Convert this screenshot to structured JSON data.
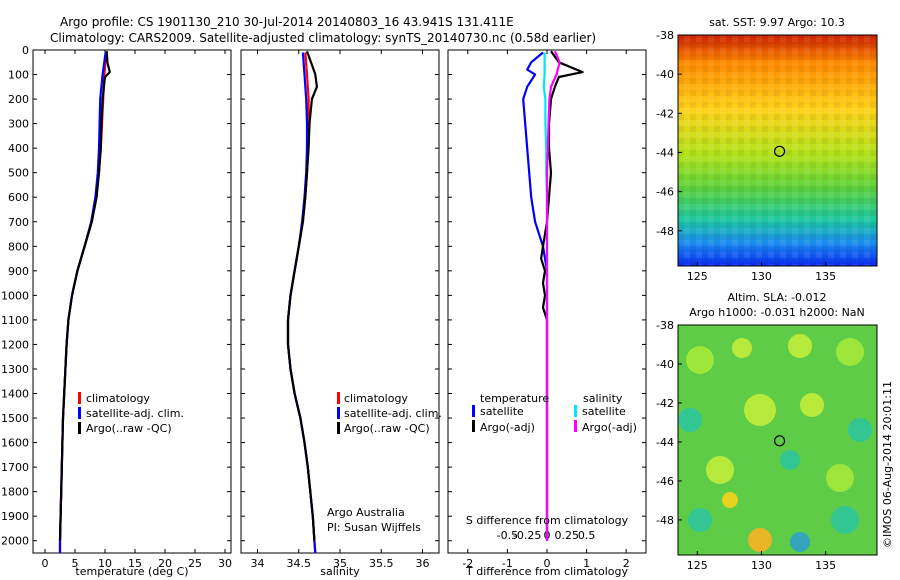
{
  "title_line1": "Argo profile: CS 1901130_210 30-Jul-2014 20140803_16 43.941S 131.411E",
  "title_line2": "Climatology: CARS2009. Satellite-adjusted climatology: synTS_20140730.nc (0.58d earlier)",
  "side_stamp": "©IMOS 06-Aug-2014 20:01:11",
  "colors": {
    "climatology": "#ff0000",
    "satellite": "#0000ff",
    "argo": "#000000",
    "sal_satellite": "#00e5ff",
    "sal_argo": "#ff00ff"
  },
  "depth_ticks": [
    "0",
    "100",
    "200",
    "300",
    "400",
    "500",
    "600",
    "700",
    "800",
    "900",
    "1000",
    "1100",
    "1200",
    "1300",
    "1400",
    "1500",
    "1600",
    "1700",
    "1800",
    "1900",
    "2000"
  ],
  "chart_data": [
    {
      "type": "line",
      "xlabel": "temperature (deg C)",
      "xlim": [
        -2,
        31
      ],
      "ylim": [
        2050,
        0
      ],
      "xticks": [
        "0",
        "5",
        "10",
        "15",
        "20",
        "25",
        "30"
      ],
      "legend": [
        "climatology",
        "satellite-adj. clim.",
        "Argo(..raw -QC)"
      ],
      "series": [
        {
          "name": "climatology",
          "depth": [
            10,
            100,
            200,
            300,
            400,
            500,
            600,
            700,
            800,
            900,
            1000,
            1100,
            1200,
            1300,
            1400,
            1500,
            1600,
            1700,
            1800,
            1900,
            2000,
            2050
          ],
          "values": [
            10.2,
            9.9,
            9.7,
            9.5,
            9.3,
            9.0,
            8.5,
            7.8,
            6.6,
            5.4,
            4.5,
            3.9,
            3.6,
            3.4,
            3.2,
            3.0,
            2.9,
            2.8,
            2.7,
            2.6,
            2.5,
            2.5
          ]
        },
        {
          "name": "satellite-adj. clim.",
          "depth": [
            10,
            100,
            200,
            300,
            400,
            500,
            600,
            700,
            800,
            900,
            1000,
            1100,
            1200,
            1300,
            1400,
            1500,
            1600,
            1700,
            1800,
            1900,
            2000,
            2050
          ],
          "values": [
            10.1,
            9.6,
            9.2,
            9.1,
            9.0,
            8.8,
            8.4,
            7.7,
            6.6,
            5.4,
            4.5,
            3.9,
            3.6,
            3.4,
            3.2,
            3.0,
            2.9,
            2.8,
            2.7,
            2.6,
            2.5,
            2.5
          ]
        },
        {
          "name": "Argo(..raw -QC)",
          "depth": [
            5,
            50,
            90,
            110,
            130,
            200,
            300,
            400,
            500,
            600,
            700,
            800,
            900,
            1000,
            1100,
            1200,
            1300,
            1400,
            1500,
            1600,
            1700,
            1800,
            1900,
            2000
          ],
          "values": [
            10.3,
            10.4,
            10.8,
            10.0,
            9.9,
            9.6,
            9.4,
            9.3,
            9.0,
            8.6,
            7.8,
            6.6,
            5.4,
            4.5,
            3.9,
            3.6,
            3.4,
            3.2,
            3.0,
            2.9,
            2.8,
            2.7,
            2.6,
            2.5
          ]
        }
      ]
    },
    {
      "type": "line",
      "xlabel": "salinity",
      "xlim": [
        33.8,
        36.2
      ],
      "ylim": [
        2050,
        0
      ],
      "xticks": [
        "34",
        "34.5",
        "35",
        "35.5",
        "36"
      ],
      "legend": [
        "climatology",
        "satellite-adj. clim.",
        "Argo(..raw -QC)"
      ],
      "annotations": [
        "Argo Australia",
        "PI: Susan Wijffels"
      ],
      "series": [
        {
          "name": "climatology",
          "depth": [
            10,
            100,
            200,
            300,
            400,
            500,
            600,
            700,
            800,
            900,
            1000,
            1100,
            1200,
            1300,
            1400,
            1500,
            1600,
            1700,
            1800,
            1900,
            2000,
            2050
          ],
          "values": [
            34.58,
            34.6,
            34.62,
            34.62,
            34.61,
            34.6,
            34.58,
            34.55,
            34.5,
            34.45,
            34.4,
            34.37,
            34.37,
            34.4,
            34.45,
            34.52,
            34.57,
            34.61,
            34.64,
            34.67,
            34.69,
            34.7
          ]
        },
        {
          "name": "satellite-adj. clim.",
          "depth": [
            10,
            100,
            200,
            300,
            400,
            500,
            600,
            700,
            800,
            900,
            1000,
            1100,
            1200,
            1300,
            1400,
            1500,
            1600,
            1700,
            1800,
            1900,
            2000,
            2050
          ],
          "values": [
            34.55,
            34.57,
            34.59,
            34.6,
            34.6,
            34.59,
            34.57,
            34.54,
            34.5,
            34.45,
            34.4,
            34.37,
            34.37,
            34.4,
            34.45,
            34.52,
            34.57,
            34.61,
            34.64,
            34.67,
            34.69,
            34.7
          ]
        },
        {
          "name": "Argo(..raw -QC)",
          "depth": [
            5,
            60,
            100,
            150,
            200,
            300,
            400,
            500,
            600,
            700,
            800,
            900,
            1000,
            1100,
            1200,
            1300,
            1400,
            1500,
            1600,
            1700,
            1800,
            1900,
            2000
          ],
          "values": [
            34.6,
            34.66,
            34.7,
            34.72,
            34.66,
            34.63,
            34.62,
            34.6,
            34.58,
            34.55,
            34.5,
            34.45,
            34.4,
            34.37,
            34.37,
            34.4,
            34.45,
            34.52,
            34.57,
            34.61,
            34.64,
            34.67,
            34.69
          ]
        }
      ]
    },
    {
      "type": "line",
      "xlabel": "T difference from climatology",
      "xlabel_top": "S difference from climatology",
      "xlim": [
        -2.5,
        2.5
      ],
      "ylim": [
        2050,
        0
      ],
      "xticks": [
        "-2",
        "-1",
        "0",
        "1",
        "2"
      ],
      "xticks_top": [
        "-0.5",
        "-0.25",
        "0",
        "0.25",
        "0.5"
      ],
      "legend_titles": [
        "temperature",
        "salinity"
      ],
      "legend": [
        "satellite",
        "Argo(-adj)",
        "satellite",
        "Argo(-adj)"
      ],
      "series": [
        {
          "name": "temperature satellite",
          "depth": [
            10,
            50,
            80,
            100,
            150,
            200,
            300,
            400,
            500,
            600,
            700,
            800,
            900,
            1000,
            1200,
            1500,
            2000
          ],
          "values": [
            -0.1,
            -0.4,
            -0.5,
            -0.3,
            -0.5,
            -0.6,
            -0.55,
            -0.5,
            -0.45,
            -0.4,
            -0.3,
            -0.1,
            0.0,
            0.0,
            0.0,
            0.0,
            0.0
          ]
        },
        {
          "name": "temperature Argo(-adj)",
          "depth": [
            5,
            50,
            90,
            110,
            150,
            200,
            300,
            400,
            500,
            600,
            700,
            800,
            850,
            900,
            950,
            1000,
            1050,
            1100,
            1200,
            1500,
            2000
          ],
          "values": [
            0.1,
            0.3,
            0.9,
            0.3,
            0.2,
            0.1,
            0.05,
            0.05,
            0.1,
            0.05,
            0.0,
            -0.1,
            -0.15,
            -0.05,
            -0.1,
            -0.05,
            -0.1,
            0.0,
            0.0,
            0.0,
            0.0
          ]
        },
        {
          "name": "salinity satellite",
          "depth": [
            10,
            50,
            100,
            150,
            200,
            300,
            400,
            500,
            600,
            800,
            1000,
            1500,
            2000
          ],
          "values": [
            -0.03,
            -0.03,
            -0.03,
            -0.04,
            -0.02,
            -0.02,
            -0.01,
            -0.01,
            0.0,
            0.0,
            0.0,
            0.0,
            0.0
          ]
        },
        {
          "name": "salinity Argo(-adj)",
          "depth": [
            5,
            50,
            100,
            150,
            200,
            300,
            400,
            500,
            600,
            800,
            1000,
            1500,
            2000
          ],
          "values": [
            0.1,
            0.16,
            0.12,
            0.05,
            0.03,
            0.02,
            0.01,
            0.0,
            0.0,
            0.0,
            0.0,
            0.0,
            0.0
          ]
        }
      ]
    },
    {
      "type": "heatmap",
      "title": "sat. SST: 9.97  Argo: 10.3",
      "xticks": [
        "125",
        "130",
        "135"
      ],
      "yticks": [
        "-38",
        "-40",
        "-42",
        "-44",
        "-46",
        "-48"
      ],
      "marker": {
        "lon": 131.411,
        "lat": -43.941
      }
    },
    {
      "type": "heatmap",
      "title_line1": "Altim. SLA: -0.012",
      "title_line2": "Argo h1000: -0.031  h2000: NaN",
      "xticks": [
        "125",
        "130",
        "135"
      ],
      "yticks": [
        "-38",
        "-40",
        "-42",
        "-44",
        "-46",
        "-48"
      ],
      "marker": {
        "lon": 131.411,
        "lat": -43.941
      }
    }
  ]
}
